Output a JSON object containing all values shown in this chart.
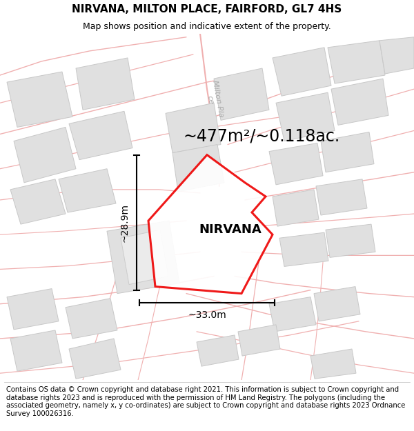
{
  "title": "NIRVANA, MILTON PLACE, FAIRFORD, GL7 4HS",
  "subtitle": "Map shows position and indicative extent of the property.",
  "footer": "Contains OS data © Crown copyright and database right 2021. This information is subject to Crown copyright and database rights 2023 and is reproduced with the permission of HM Land Registry. The polygons (including the associated geometry, namely x, y co-ordinates) are subject to Crown copyright and database rights 2023 Ordnance Survey 100026316.",
  "area_label": "~477m²/~0.118ac.",
  "property_name": "NIRVANA",
  "width_label": "~33.0m",
  "height_label": "~28.9m",
  "map_bg": "#f7f7f7",
  "road_color": "#f0b0b0",
  "building_fill": "#e0e0e0",
  "building_edge": "#c8c8c8",
  "plot_color": "#ee0000",
  "title_fontsize": 11,
  "subtitle_fontsize": 9,
  "footer_fontsize": 7.2,
  "area_fontsize": 17,
  "property_label_fontsize": 13,
  "dim_fontsize": 10,
  "road_label_color": "#aaaaaa",
  "road_label_fontsize": 8
}
